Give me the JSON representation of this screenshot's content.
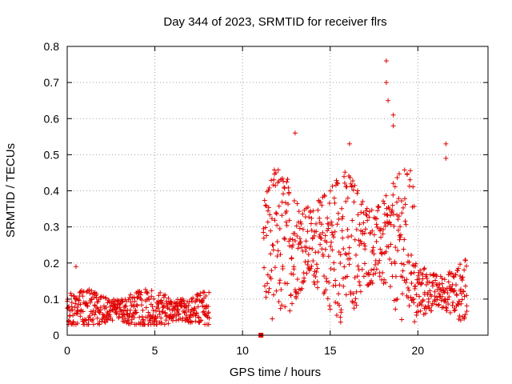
{
  "chart_data": {
    "type": "scatter",
    "title": "Day 344 of 2023, SRMTID for receiver flrs",
    "xlabel": "GPS time / hours",
    "ylabel": "SRMTID / TECUs",
    "xlim": [
      0,
      24
    ],
    "ylim": [
      0,
      0.8
    ],
    "xticks": [
      0,
      5,
      10,
      15,
      20
    ],
    "xtick_labels": [
      "0",
      "5",
      "10",
      "15",
      "20"
    ],
    "yticks": [
      0,
      0.1,
      0.2,
      0.3,
      0.4,
      0.5,
      0.6,
      0.7,
      0.8
    ],
    "ytick_labels": [
      "0",
      "0.1",
      "0.2",
      "0.3",
      "0.4",
      "0.5",
      "0.6",
      "0.7",
      "0.8"
    ],
    "grid": true,
    "marker": "plus",
    "color": "#e00000",
    "series": [
      {
        "name": "SRMTID",
        "segments": [
          {
            "start": 0.0,
            "end": 8.1,
            "step": 0.0333,
            "base": 0.07,
            "spread": 0.05
          },
          {
            "start": 11.2,
            "end": 19.8,
            "step": 0.0333,
            "base": 0.25,
            "spread": 0.18
          },
          {
            "start": 19.8,
            "end": 22.8,
            "step": 0.0333,
            "base": 0.12,
            "spread": 0.08
          }
        ],
        "notable_points": [
          {
            "x": 0.5,
            "y": 0.19
          },
          {
            "x": 11.05,
            "y": 0.0
          },
          {
            "x": 13.0,
            "y": 0.56
          },
          {
            "x": 16.1,
            "y": 0.53
          },
          {
            "x": 18.2,
            "y": 0.76
          },
          {
            "x": 18.2,
            "y": 0.7
          },
          {
            "x": 18.3,
            "y": 0.65
          },
          {
            "x": 18.6,
            "y": 0.61
          },
          {
            "x": 18.6,
            "y": 0.58
          },
          {
            "x": 21.6,
            "y": 0.53
          },
          {
            "x": 21.6,
            "y": 0.49
          }
        ]
      }
    ]
  }
}
